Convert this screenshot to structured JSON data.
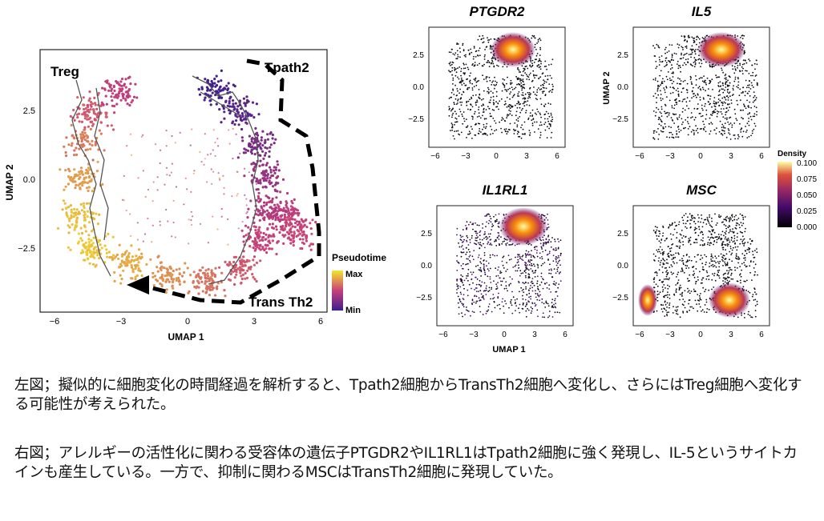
{
  "left_panel": {
    "labels": {
      "treg": "Treg",
      "tpath2": "Tpath2",
      "trans_th2": "Trans Th2"
    },
    "xlabel": "UMAP 1",
    "ylabel": "UMAP 2",
    "xticks": [
      "−6",
      "−3",
      "0",
      "3",
      "6"
    ],
    "yticks": [
      "2.5",
      "0.0",
      "−2.5"
    ],
    "legend": {
      "title": "Pseudotime",
      "max": "Max",
      "min": "Min"
    }
  },
  "small_panels": [
    {
      "title": "PTGDR2"
    },
    {
      "title": "IL5"
    },
    {
      "title": "IL1RL1"
    },
    {
      "title": "MSC"
    }
  ],
  "small_axes": {
    "xlabel": "UMAP 1",
    "ylabel": "UMAP 2",
    "xticks_a": [
      "−6",
      "−3",
      "0",
      "3",
      "6"
    ],
    "xticks_b": [
      "−6",
      "−3",
      "0",
      "3",
      "6"
    ],
    "yticks": [
      "2.5",
      "0.0",
      "−2.5"
    ]
  },
  "density_legend": {
    "title": "Density",
    "ticks": [
      "0.100",
      "0.075",
      "0.050",
      "0.025",
      "0.000"
    ]
  },
  "captions": {
    "left": "左図；擬似的に細胞変化の時間経過を解析すると、Tpath2細胞からTransTh2細胞へ変化し、さらにはTreg細胞へ変化する可能性が考えられた。",
    "right": "右図；アレルギーの活性化に関わる受容体の遺伝子PTGDR2やIL1RL1はTpath2細胞に強く発現し、IL-5というサイトカインも産生している。一方で、抑制に関わるMSCはTransTh2細胞に発現していた。"
  },
  "colors": {
    "pseudotime_min": "#3b1f8c",
    "pseudotime_mid": "#c8407a",
    "pseudotime_max": "#f5e62a",
    "density_low": "#000004",
    "density_high": "#fcffa4"
  }
}
